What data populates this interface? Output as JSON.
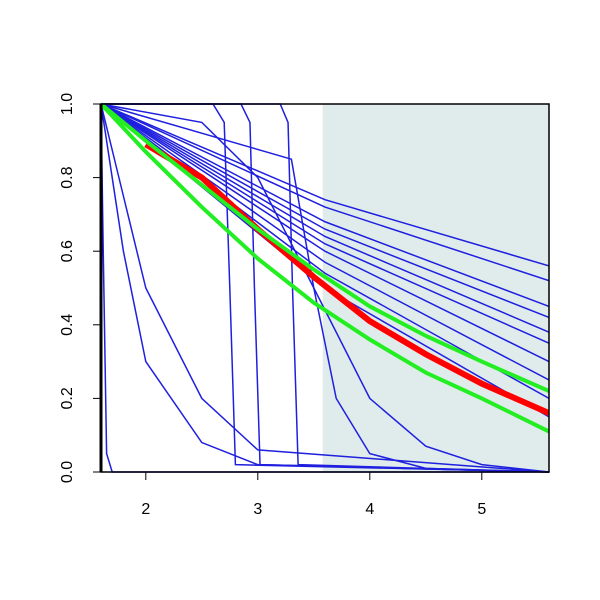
{
  "chart_data": {
    "type": "line",
    "xlim": [
      1.6,
      5.6
    ],
    "ylim": [
      0,
      1
    ],
    "xticks": [
      2,
      3,
      4,
      5
    ],
    "yticks": [
      {
        "value": 0,
        "label": "0.0"
      },
      {
        "value": 0.2,
        "label": "0.2"
      },
      {
        "value": 0.4,
        "label": "0.4"
      },
      {
        "value": 0.6,
        "label": "0.6"
      },
      {
        "value": 0.8,
        "label": "0.8"
      },
      {
        "value": 1,
        "label": "1.0"
      }
    ],
    "shaded_region": {
      "xlim": [
        3.58,
        5.6
      ],
      "color": "#dfeceb"
    },
    "series": [
      {
        "color": "#1f1fdf",
        "line_width": 1.5,
        "x": [
          1.6,
          3.6,
          5.6
        ],
        "values": [
          1,
          0.74,
          0.56
        ]
      },
      {
        "color": "#1f1fdf",
        "line_width": 1.5,
        "x": [
          1.6,
          3.6,
          5.6
        ],
        "values": [
          1,
          0.72,
          0.52
        ]
      },
      {
        "color": "#1f1fdf",
        "line_width": 1.5,
        "x": [
          1.6,
          3.6,
          5.6
        ],
        "values": [
          1,
          0.68,
          0.45
        ]
      },
      {
        "color": "#1f1fdf",
        "line_width": 1.5,
        "x": [
          1.6,
          3.6,
          5.6
        ],
        "values": [
          1,
          0.66,
          0.42
        ]
      },
      {
        "color": "#1f1fdf",
        "line_width": 1.5,
        "x": [
          1.6,
          3.6,
          5.6
        ],
        "values": [
          1,
          0.64,
          0.38
        ]
      },
      {
        "color": "#1f1fdf",
        "line_width": 1.5,
        "x": [
          1.6,
          3.6,
          5.6
        ],
        "values": [
          1,
          0.62,
          0.35
        ]
      },
      {
        "color": "#1f1fdf",
        "line_width": 1.5,
        "x": [
          1.6,
          3.6,
          5.6
        ],
        "values": [
          1,
          0.6,
          0.3
        ]
      },
      {
        "color": "#1f1fdf",
        "line_width": 1.5,
        "x": [
          1.6,
          3.6,
          5.6
        ],
        "values": [
          1,
          0.57,
          0.25
        ]
      },
      {
        "color": "#1f1fdf",
        "line_width": 1.5,
        "x": [
          1.6,
          3.6,
          5.6
        ],
        "values": [
          1,
          0.54,
          0.2
        ]
      },
      {
        "color": "#1f1fdf",
        "line_width": 1.5,
        "x": [
          1.6,
          3.6,
          5.6
        ],
        "values": [
          1,
          0.5,
          0.15
        ]
      },
      {
        "color": "#1f1fdf",
        "line_width": 1.5,
        "x": [
          1.6,
          1.62,
          1.65,
          1.7,
          5.6
        ],
        "values": [
          1,
          0.6,
          0.05,
          0,
          0
        ]
      },
      {
        "color": "#1f1fdf",
        "line_width": 1.5,
        "x": [
          1.6,
          1.8,
          2,
          2.5,
          3,
          5.6
        ],
        "values": [
          1,
          0.6,
          0.3,
          0.08,
          0.02,
          0
        ]
      },
      {
        "color": "#1f1fdf",
        "line_width": 1.5,
        "x": [
          1.6,
          1.8,
          2,
          2.5,
          3,
          5.6
        ],
        "values": [
          1,
          0.75,
          0.5,
          0.2,
          0.06,
          0
        ]
      },
      {
        "color": "#1f1fdf",
        "line_width": 1.5,
        "x": [
          1.6,
          2.6,
          2.7,
          2.75,
          2.8,
          5.6
        ],
        "values": [
          1,
          1,
          0.95,
          0.5,
          0.02,
          0
        ]
      },
      {
        "color": "#1f1fdf",
        "line_width": 1.5,
        "x": [
          1.6,
          2.85,
          2.93,
          2.97,
          3.02,
          5.6
        ],
        "values": [
          1,
          1,
          0.95,
          0.5,
          0.02,
          0
        ]
      },
      {
        "color": "#1f1fdf",
        "line_width": 1.5,
        "x": [
          1.6,
          3.2,
          3.27,
          3.31,
          3.36,
          5.6
        ],
        "values": [
          1,
          1,
          0.95,
          0.5,
          0.02,
          0
        ]
      },
      {
        "color": "#1f1fdf",
        "line_width": 1.5,
        "x": [
          1.6,
          3.3,
          3.5,
          3.7,
          4,
          4.5,
          5.6
        ],
        "values": [
          1,
          0.85,
          0.5,
          0.2,
          0.05,
          0.01,
          0
        ]
      },
      {
        "color": "#1f1fdf",
        "line_width": 1.5,
        "x": [
          1.6,
          2.5,
          3,
          3.5,
          4,
          4.5,
          5,
          5.6
        ],
        "values": [
          1,
          0.95,
          0.8,
          0.5,
          0.2,
          0.07,
          0.02,
          0
        ]
      },
      {
        "color": "#ff0000",
        "line_width": 6,
        "x": [
          2,
          2.5,
          3,
          3.5,
          4,
          4.5,
          5,
          5.6
        ],
        "values": [
          0.89,
          0.8,
          0.66,
          0.53,
          0.41,
          0.32,
          0.24,
          0.16
        ]
      },
      {
        "color": "#22ee22",
        "line_width": 4,
        "x": [
          1.6,
          2,
          2.5,
          3,
          3.5,
          4,
          4.5,
          5,
          5.6
        ],
        "values": [
          1,
          0.9,
          0.78,
          0.66,
          0.55,
          0.45,
          0.37,
          0.3,
          0.22
        ]
      },
      {
        "color": "#22ee22",
        "line_width": 4,
        "x": [
          1.6,
          2,
          2.5,
          3,
          3.5,
          4,
          4.5,
          5,
          5.6
        ],
        "values": [
          1,
          0.87,
          0.72,
          0.58,
          0.46,
          0.36,
          0.27,
          0.2,
          0.11
        ]
      }
    ]
  }
}
